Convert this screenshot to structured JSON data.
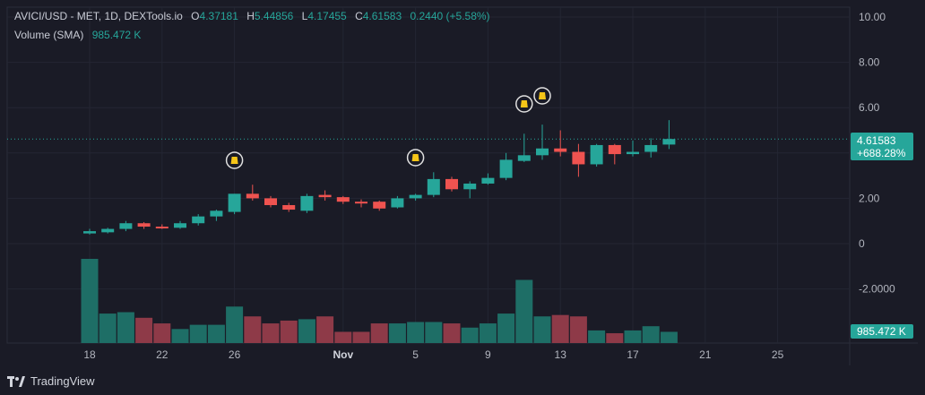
{
  "colors": {
    "up": "#26a69a",
    "down": "#ef5350",
    "up_vol": "#1e6e66",
    "down_vol": "#8e3a48",
    "bg": "#1a1b26",
    "grid": "#242633",
    "text": "#b2b5be",
    "accent": "#26a69a"
  },
  "header": {
    "symbol": "AVICI/USD - MET, 1D, DEXTools.io",
    "o_label": "O",
    "o_value": "4.37181",
    "h_label": "H",
    "h_value": "5.44856",
    "l_label": "L",
    "l_value": "4.17455",
    "c_label": "C",
    "c_value": "4.61583",
    "change": "0.2440 (+5.58%)",
    "volume_label": "Volume (SMA)",
    "volume_value": "985.472 K"
  },
  "price_tag": {
    "price": "4.61583",
    "percent": "+688.28%"
  },
  "volume_tag": "985.472 K",
  "branding": "TradingView",
  "chart_data": {
    "type": "candlestick",
    "title": "AVICI/USD - MET, 1D, DEXTools.io",
    "ylim": [
      -4.1,
      10.2
    ],
    "y_ticks": [
      10.0,
      8.0,
      6.0,
      4.0,
      2.0,
      0,
      -2.0
    ],
    "y_tick_labels": [
      "10.00",
      "8.00",
      "6.00",
      "",
      "2.00",
      "0",
      "-2.0000"
    ],
    "x_ticks": [
      {
        "label": "18",
        "i": 0
      },
      {
        "label": "22",
        "i": 4
      },
      {
        "label": "26",
        "i": 8
      },
      {
        "label": "Nov",
        "i": 14
      },
      {
        "label": "5",
        "i": 18
      },
      {
        "label": "9",
        "i": 22
      },
      {
        "label": "13",
        "i": 26
      },
      {
        "label": "17",
        "i": 30
      },
      {
        "label": "21",
        "i": 34
      },
      {
        "label": "25",
        "i": 38
      }
    ],
    "last_price": 4.61583,
    "candles": [
      {
        "o": 0.45,
        "h": 0.65,
        "l": 0.4,
        "c": 0.55
      },
      {
        "o": 0.5,
        "h": 0.7,
        "l": 0.45,
        "c": 0.65
      },
      {
        "o": 0.65,
        "h": 1.0,
        "l": 0.55,
        "c": 0.9
      },
      {
        "o": 0.9,
        "h": 0.95,
        "l": 0.65,
        "c": 0.75
      },
      {
        "o": 0.75,
        "h": 0.85,
        "l": 0.65,
        "c": 0.72
      },
      {
        "o": 0.7,
        "h": 1.0,
        "l": 0.65,
        "c": 0.9
      },
      {
        "o": 0.9,
        "h": 1.3,
        "l": 0.8,
        "c": 1.2
      },
      {
        "o": 1.2,
        "h": 1.5,
        "l": 1.0,
        "c": 1.45
      },
      {
        "o": 1.4,
        "h": 2.2,
        "l": 1.3,
        "c": 2.2
      },
      {
        "o": 2.2,
        "h": 2.6,
        "l": 1.9,
        "c": 2.0
      },
      {
        "o": 2.0,
        "h": 2.1,
        "l": 1.6,
        "c": 1.7
      },
      {
        "o": 1.7,
        "h": 1.8,
        "l": 1.4,
        "c": 1.5
      },
      {
        "o": 1.45,
        "h": 2.2,
        "l": 1.35,
        "c": 2.1
      },
      {
        "o": 2.15,
        "h": 2.35,
        "l": 1.9,
        "c": 2.05
      },
      {
        "o": 2.05,
        "h": 2.1,
        "l": 1.75,
        "c": 1.85
      },
      {
        "o": 1.85,
        "h": 1.95,
        "l": 1.6,
        "c": 1.8
      },
      {
        "o": 1.85,
        "h": 1.9,
        "l": 1.45,
        "c": 1.55
      },
      {
        "o": 1.6,
        "h": 2.1,
        "l": 1.55,
        "c": 2.0
      },
      {
        "o": 2.0,
        "h": 2.2,
        "l": 1.9,
        "c": 2.15
      },
      {
        "o": 2.15,
        "h": 3.15,
        "l": 2.05,
        "c": 2.85
      },
      {
        "o": 2.85,
        "h": 2.95,
        "l": 2.3,
        "c": 2.4
      },
      {
        "o": 2.4,
        "h": 2.75,
        "l": 2.0,
        "c": 2.65
      },
      {
        "o": 2.65,
        "h": 3.1,
        "l": 2.6,
        "c": 2.9
      },
      {
        "o": 2.9,
        "h": 4.0,
        "l": 2.8,
        "c": 3.7
      },
      {
        "o": 3.65,
        "h": 4.85,
        "l": 3.6,
        "c": 3.9
      },
      {
        "o": 3.9,
        "h": 5.25,
        "l": 3.7,
        "c": 4.2
      },
      {
        "o": 4.2,
        "h": 5.0,
        "l": 3.85,
        "c": 4.05
      },
      {
        "o": 4.05,
        "h": 4.4,
        "l": 2.95,
        "c": 3.5
      },
      {
        "o": 3.5,
        "h": 4.4,
        "l": 3.4,
        "c": 4.35
      },
      {
        "o": 4.35,
        "h": 4.4,
        "l": 3.5,
        "c": 3.95
      },
      {
        "o": 3.95,
        "h": 4.55,
        "l": 3.85,
        "c": 4.05
      },
      {
        "o": 4.05,
        "h": 4.65,
        "l": 3.8,
        "c": 4.35
      },
      {
        "o": 4.37181,
        "h": 5.44856,
        "l": 4.17455,
        "c": 4.61583
      }
    ],
    "volume": {
      "name": "Volume (SMA)",
      "max_visible": 6.0,
      "values": [
        6.0,
        2.1,
        2.2,
        1.8,
        1.4,
        1.0,
        1.3,
        1.3,
        2.6,
        1.9,
        1.4,
        1.6,
        1.7,
        1.9,
        0.8,
        0.8,
        1.4,
        1.4,
        1.5,
        1.5,
        1.4,
        1.1,
        1.4,
        2.1,
        4.5,
        1.9,
        2.0,
        1.9,
        0.9,
        0.7,
        0.9,
        1.2,
        0.8
      ]
    },
    "markers": [
      {
        "i": 8,
        "label": "bag-icon"
      },
      {
        "i": 18,
        "label": "bag-icon"
      },
      {
        "i": 24,
        "label": "bag-icon"
      },
      {
        "i": 25,
        "label": "bag-icon"
      }
    ]
  }
}
